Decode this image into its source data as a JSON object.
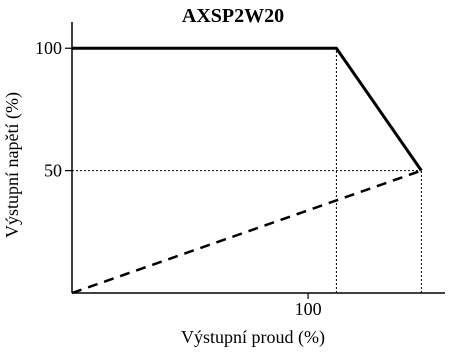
{
  "chart_data": {
    "type": "line",
    "title": "AXSP2W20",
    "xlabel": "Výstupní proud (%)",
    "ylabel": "Výstupní napětí (%)",
    "xlim": [
      0,
      158
    ],
    "ylim": [
      0,
      105
    ],
    "x_ticks": [
      {
        "value": 100,
        "label": "100"
      }
    ],
    "y_ticks": [
      {
        "value": 100,
        "label": "100"
      },
      {
        "value": 50,
        "label": "50"
      }
    ],
    "grid": false,
    "series": [
      {
        "style": "solid",
        "x": [
          0,
          112,
          148
        ],
        "y": [
          100,
          100,
          50
        ]
      },
      {
        "style": "dashed",
        "x": [
          0,
          148
        ],
        "y": [
          0,
          50
        ]
      }
    ],
    "reference_lines": [
      {
        "style": "dotted",
        "x": [
          112,
          112
        ],
        "y": [
          0,
          100
        ]
      },
      {
        "style": "dotted",
        "x": [
          148,
          148
        ],
        "y": [
          0,
          50
        ]
      },
      {
        "style": "dotted",
        "x": [
          0,
          148
        ],
        "y": [
          50,
          50
        ]
      }
    ]
  }
}
